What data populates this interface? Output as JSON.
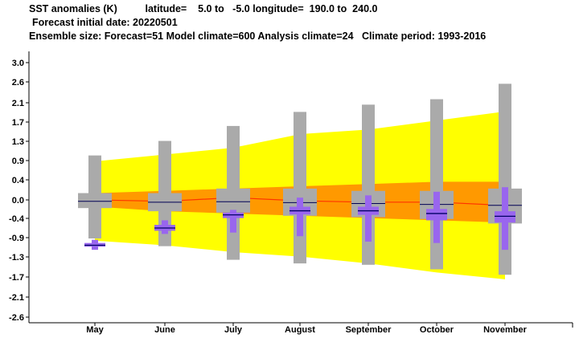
{
  "header": {
    "line1": "SST anomalies (K)          latitude=    5.0 to   -5.0 longitude=  190.0 to  240.0",
    "line2": "Forecast initial date: 20220501",
    "line3": "Ensemble size: Forecast=51 Model climate=600 Analysis climate=24   Climate period: 1993-2016"
  },
  "colors": {
    "climate_outer": "#ffff00",
    "climate_inner": "#ff9900",
    "climate_median": "#ff3300",
    "forecast_box": "#aaaaaa",
    "forecast_median": "#000055",
    "analysis_box": "#9966ee",
    "analysis_median": "#000066"
  },
  "chart_data": {
    "type": "box",
    "title": "SST anomalies (K)",
    "ylim": [
      -2.6,
      3.2
    ],
    "yticks": [
      "3.0",
      "2.6",
      "2.1",
      "1.7",
      "1.3",
      "0.9",
      "0.4",
      "0.0",
      "-0.4",
      "-0.9",
      "-1.3",
      "-1.7",
      "-2.1",
      "-2.6"
    ],
    "ytick_values": [
      3.0,
      2.6,
      2.1,
      1.7,
      1.3,
      0.9,
      0.4,
      0.0,
      -0.4,
      -0.9,
      -1.3,
      -1.7,
      -2.1,
      -2.6
    ],
    "categories": [
      "May",
      "June",
      "July",
      "August",
      "September",
      "October",
      "November"
    ],
    "model_climate": {
      "outer_upper": [
        0.85,
        1.0,
        1.15,
        1.45,
        1.55,
        1.75,
        1.95
      ],
      "outer_lower": [
        -0.9,
        -1.0,
        -1.15,
        -1.25,
        -1.4,
        -1.6,
        -1.75
      ],
      "inner_upper": [
        0.15,
        0.2,
        0.25,
        0.3,
        0.35,
        0.4,
        0.4
      ],
      "inner_lower": [
        -0.15,
        -0.25,
        -0.3,
        -0.35,
        -0.4,
        -0.45,
        -0.5
      ],
      "median": [
        0.0,
        -0.03,
        0.05,
        -0.02,
        -0.05,
        -0.05,
        -0.12
      ]
    },
    "forecast": {
      "max": [
        0.98,
        1.3,
        1.63,
        1.94,
        2.1,
        2.22,
        2.56
      ],
      "q_upper": [
        0.15,
        0.15,
        0.25,
        0.25,
        0.2,
        0.2,
        0.25
      ],
      "median": [
        -0.03,
        -0.05,
        -0.04,
        -0.06,
        -0.08,
        -0.1,
        -0.12
      ],
      "q_lower": [
        -0.18,
        -0.25,
        -0.28,
        -0.35,
        -0.38,
        -0.42,
        -0.52
      ],
      "min": [
        -0.85,
        -1.02,
        -1.32,
        -1.4,
        -1.43,
        -1.53,
        -1.65
      ]
    },
    "analysis": {
      "max": [
        -0.88,
        -0.45,
        -0.22,
        0.05,
        0.1,
        0.18,
        0.28
      ],
      "q_upper": [
        -0.95,
        -0.55,
        -0.28,
        -0.15,
        -0.15,
        -0.2,
        -0.25
      ],
      "median": [
        -1.0,
        -0.62,
        -0.33,
        -0.24,
        -0.24,
        -0.3,
        -0.36
      ],
      "q_lower": [
        -1.03,
        -0.68,
        -0.4,
        -0.32,
        -0.33,
        -0.45,
        -0.5
      ],
      "min": [
        -1.1,
        -0.75,
        -0.72,
        -0.8,
        -0.92,
        -0.95,
        -1.1
      ]
    }
  }
}
